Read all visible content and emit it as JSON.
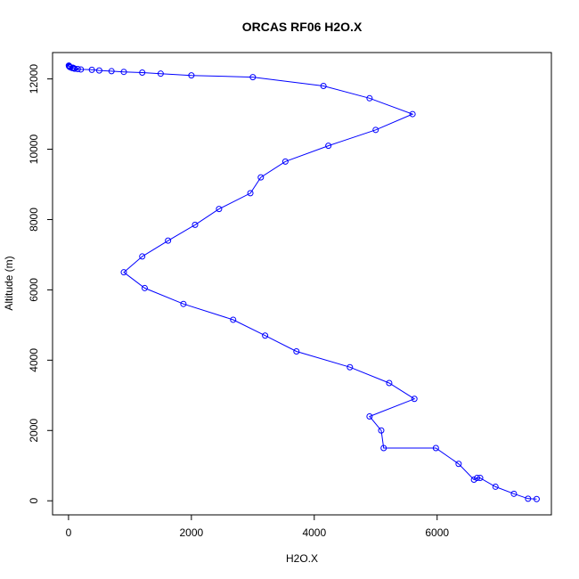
{
  "chart_data": {
    "type": "line",
    "title": "ORCAS RF06 H2O.X",
    "xlabel": "H2O.X",
    "ylabel": "Altitude (m)",
    "xlim": [
      -260,
      7860
    ],
    "ylim": [
      -400,
      12750
    ],
    "x_ticks": [
      0,
      2000,
      4000,
      6000
    ],
    "y_ticks": [
      0,
      2000,
      4000,
      6000,
      8000,
      10000,
      12000
    ],
    "colors": {
      "series": "#0000ff",
      "axis": "#000000"
    },
    "grid": false,
    "series": [
      {
        "x": [
          7620,
          7480,
          7250,
          6950,
          6700,
          6650,
          6600,
          6350,
          5980,
          5130,
          5090,
          4900,
          5630,
          5220,
          4580,
          3710,
          3200,
          2680,
          1870,
          1240,
          900,
          1200,
          1620,
          2060,
          2450,
          2960,
          3130,
          3530,
          4230,
          5000,
          5600,
          4900,
          4150,
          3000,
          2000,
          1500,
          1200,
          900,
          700,
          500,
          380,
          200,
          150,
          100,
          90,
          60,
          70,
          30,
          20,
          15,
          10,
          8,
          5
        ],
        "y": [
          50,
          60,
          200,
          400,
          650,
          650,
          600,
          1050,
          1500,
          1500,
          2000,
          2400,
          2900,
          3350,
          3800,
          4250,
          4700,
          5150,
          5600,
          6050,
          6500,
          6950,
          7400,
          7850,
          8300,
          8750,
          9200,
          9650,
          10100,
          10550,
          11000,
          11450,
          11800,
          12050,
          12100,
          12150,
          12180,
          12200,
          12220,
          12240,
          12260,
          12270,
          12280,
          12290,
          12300,
          12310,
          12320,
          12330,
          12340,
          12350,
          12360,
          12370,
          12380
        ],
        "__note_removed": ""
      }
    ]
  }
}
